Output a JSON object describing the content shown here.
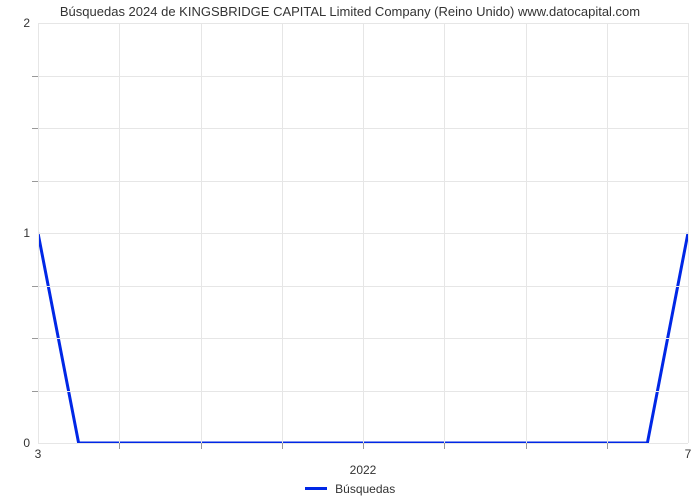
{
  "chart": {
    "type": "line",
    "title": "Búsquedas 2024 de KINGSBRIDGE CAPITAL Limited Company (Reino Unido) www.datocapital.com",
    "title_fontsize": 13,
    "title_color": "#333333",
    "background_color": "#ffffff",
    "grid_color": "#e6e6e6",
    "axis_tick_color": "#999999",
    "axis_label_color": "#333333",
    "axis_label_fontsize": 12,
    "xlim": [
      3,
      7
    ],
    "ylim": [
      0,
      2
    ],
    "y_ticks_major": [
      0,
      1,
      2
    ],
    "y_ticks_minor": [
      0.25,
      0.5,
      0.75,
      1.25,
      1.5,
      1.75
    ],
    "x_ticks_major": [
      3,
      7
    ],
    "x_ticks_minor": [
      3.5,
      4,
      4.5,
      5,
      5.5,
      6,
      6.5
    ],
    "x_axis_center_label": "2022",
    "x_axis_center_pos": 5,
    "series": {
      "label": "Búsquedas",
      "color": "#0027e6",
      "line_width": 3,
      "x": [
        3,
        3.25,
        6.75,
        7
      ],
      "y": [
        1,
        0,
        0,
        1
      ]
    },
    "legend": {
      "position": "bottom-center"
    }
  }
}
